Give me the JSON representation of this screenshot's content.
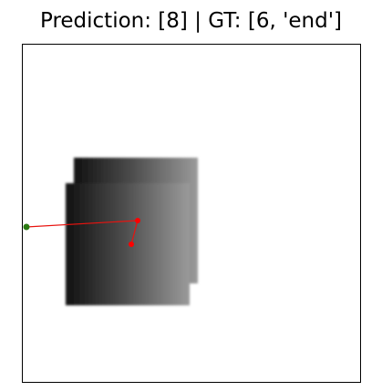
{
  "figure": {
    "title": "Prediction: [8] | GT: [6, 'end']"
  },
  "image": {
    "description_shape": "gray-gradient-block",
    "gradient_colors": [
      "#111111",
      "#4a4a4a",
      "#9a9a9a"
    ]
  },
  "trajectory": {
    "line_color": "#e8130f",
    "point_color": "#ff0000",
    "start_marker_color": "#2a7a12"
  }
}
